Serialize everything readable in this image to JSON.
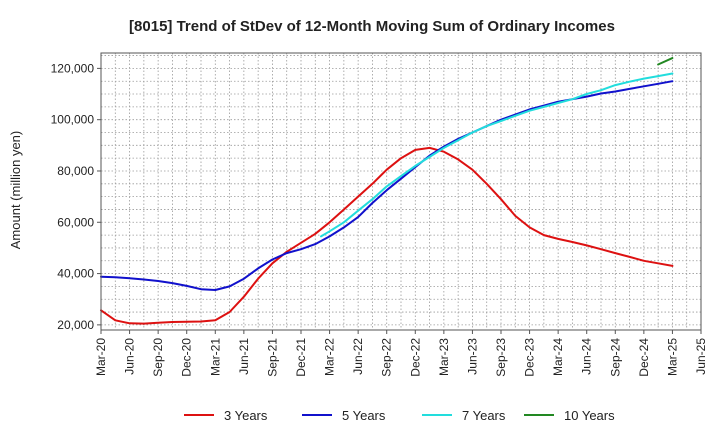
{
  "chart_data": {
    "type": "line",
    "title": "[8015]  Trend of StDev of 12-Month Moving Sum of Ordinary Incomes",
    "xlabel": "",
    "ylabel": "Amount (million yen)",
    "ylim": [
      18000,
      126000
    ],
    "yticks": [
      20000,
      40000,
      60000,
      80000,
      100000,
      120000
    ],
    "ytick_labels": [
      "20,000",
      "40,000",
      "60,000",
      "80,000",
      "100,000",
      "120,000"
    ],
    "xticks": [
      "Mar-20",
      "Jun-20",
      "Sep-20",
      "Dec-20",
      "Mar-21",
      "Jun-21",
      "Sep-21",
      "Dec-21",
      "Mar-22",
      "Jun-22",
      "Sep-22",
      "Dec-22",
      "Mar-23",
      "Jun-23",
      "Sep-23",
      "Dec-23",
      "Mar-24",
      "Jun-24",
      "Sep-24",
      "Dec-24",
      "Mar-25",
      "Jun-25"
    ],
    "grid": true,
    "legend_position": "bottom",
    "series": [
      {
        "name": "3 Years",
        "color": "#dd1111",
        "x": [
          0,
          0.5,
          1,
          1.5,
          2,
          2.5,
          3,
          3.5,
          4,
          4.5,
          5,
          5.5,
          6,
          6.5,
          7,
          7.5,
          8,
          8.5,
          9,
          9.5,
          10,
          10.5,
          11,
          11.5,
          12,
          12.5,
          13,
          13.5,
          14,
          14.5,
          15,
          15.5,
          16,
          16.5,
          17,
          17.5,
          18,
          18.5,
          19,
          19.5,
          20
        ],
        "y": [
          25700,
          21800,
          20600,
          20500,
          20800,
          21100,
          21200,
          21300,
          21800,
          25000,
          31000,
          38000,
          44000,
          48500,
          52000,
          55500,
          60000,
          65000,
          70000,
          75000,
          80500,
          85000,
          88200,
          89000,
          87500,
          84500,
          80500,
          75000,
          69000,
          62500,
          58000,
          55000,
          53500,
          52300,
          51000,
          49500,
          48000,
          46500,
          45000,
          44000,
          43000
        ]
      },
      {
        "name": "5 Years",
        "color": "#1111cc",
        "x": [
          0,
          0.5,
          1,
          1.5,
          2,
          2.5,
          3,
          3.5,
          4,
          4.5,
          5,
          5.5,
          6,
          6.5,
          7,
          7.5,
          8,
          8.5,
          9,
          9.5,
          10,
          10.5,
          11,
          11.5,
          12,
          12.5,
          13,
          13.5,
          14,
          14.5,
          15,
          15.5,
          16,
          16.5,
          17,
          17.5,
          18,
          18.5,
          19,
          19.5,
          20
        ],
        "y": [
          38800,
          38600,
          38200,
          37700,
          37100,
          36300,
          35200,
          33900,
          33600,
          35000,
          38000,
          42000,
          45500,
          48000,
          49500,
          51500,
          54500,
          58000,
          62000,
          67500,
          72500,
          77000,
          81500,
          86000,
          89500,
          92500,
          95000,
          97500,
          100000,
          102000,
          104000,
          105500,
          107000,
          108000,
          109000,
          110200,
          111000,
          112000,
          113000,
          114000,
          115000
        ]
      },
      {
        "name": "7 Years",
        "color": "#22dddd",
        "x": [
          7.7,
          8,
          8.5,
          9,
          9.5,
          10,
          10.5,
          11,
          11.5,
          12,
          12.5,
          13,
          13.5,
          14,
          14.5,
          15,
          15.5,
          16,
          16.5,
          17,
          17.5,
          18,
          18.5,
          19,
          19.5,
          20
        ],
        "y": [
          54500,
          56500,
          60000,
          64500,
          69000,
          74000,
          78000,
          82000,
          85500,
          89000,
          92000,
          95000,
          97500,
          99500,
          101500,
          103500,
          105000,
          106500,
          108000,
          110000,
          111500,
          113500,
          114800,
          116000,
          117000,
          118000
        ]
      },
      {
        "name": "10 Years",
        "color": "#228822",
        "x": [
          19.5,
          20
        ],
        "y": [
          121500,
          124000
        ]
      }
    ]
  }
}
